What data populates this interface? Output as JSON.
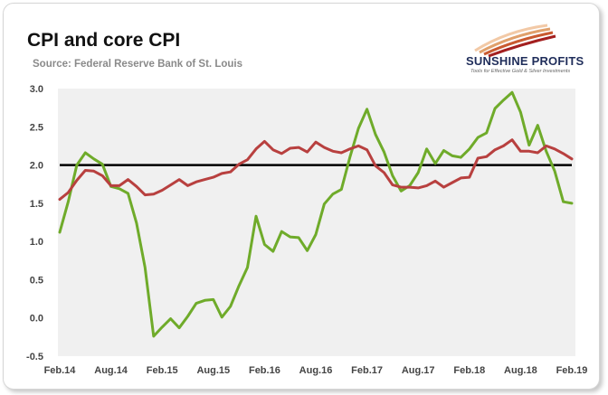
{
  "header": {
    "title": "CPI and core CPI",
    "subtitle": "Source: Federal Reserve Bank of St. Louis"
  },
  "logo": {
    "name": "SUNSHINE PROFITS",
    "tagline": "Tools for Effective Gold & Silver Investments"
  },
  "colors": {
    "cpi": "#6fab2a",
    "core_cpi": "#b8403f",
    "reference_line": "#000000",
    "plot_background": "#f0f0f0"
  },
  "chart_data": {
    "type": "line",
    "title": "CPI and core CPI",
    "subtitle": "Source: Federal Reserve Bank of St. Louis",
    "xlabel": "",
    "ylabel": "",
    "ylim": [
      -0.5,
      3.0
    ],
    "yticks": [
      3.0,
      2.5,
      2.0,
      1.5,
      1.0,
      0.5,
      0.0,
      -0.5
    ],
    "ytick_labels": [
      "3.0",
      "2.5",
      "2.0",
      "1.5",
      "1.0",
      "0.5",
      "0.0",
      "-0.5"
    ],
    "x": [
      "2014-02",
      "2014-03",
      "2014-04",
      "2014-05",
      "2014-06",
      "2014-07",
      "2014-08",
      "2014-09",
      "2014-10",
      "2014-11",
      "2014-12",
      "2015-01",
      "2015-02",
      "2015-03",
      "2015-04",
      "2015-05",
      "2015-06",
      "2015-07",
      "2015-08",
      "2015-09",
      "2015-10",
      "2015-11",
      "2015-12",
      "2016-01",
      "2016-02",
      "2016-03",
      "2016-04",
      "2016-05",
      "2016-06",
      "2016-07",
      "2016-08",
      "2016-09",
      "2016-10",
      "2016-11",
      "2016-12",
      "2017-01",
      "2017-02",
      "2017-03",
      "2017-04",
      "2017-05",
      "2017-06",
      "2017-07",
      "2017-08",
      "2017-09",
      "2017-10",
      "2017-11",
      "2017-12",
      "2018-01",
      "2018-02",
      "2018-03",
      "2018-04",
      "2018-05",
      "2018-06",
      "2018-07",
      "2018-08",
      "2018-09",
      "2018-10",
      "2018-11",
      "2018-12",
      "2019-01",
      "2019-02"
    ],
    "xtick_labels": [
      "Feb.14",
      "Aug.14",
      "Feb.15",
      "Aug.15",
      "Feb.16",
      "Aug.16",
      "Feb.17",
      "Aug.17",
      "Feb.18",
      "Aug.18",
      "Feb.19"
    ],
    "xtick_index": [
      0,
      6,
      12,
      18,
      24,
      30,
      36,
      42,
      48,
      54,
      60
    ],
    "grid": false,
    "reference_line": 2.0,
    "series": [
      {
        "key": "cpi",
        "values": [
          1.12,
          1.52,
          2.0,
          2.16,
          2.08,
          2.01,
          1.72,
          1.69,
          1.63,
          1.24,
          0.66,
          -0.24,
          -0.12,
          -0.01,
          -0.13,
          0.02,
          0.19,
          0.23,
          0.24,
          0.01,
          0.15,
          0.42,
          0.66,
          1.33,
          0.96,
          0.87,
          1.13,
          1.06,
          1.05,
          0.88,
          1.09,
          1.49,
          1.62,
          1.68,
          2.1,
          2.48,
          2.73,
          2.4,
          2.17,
          1.86,
          1.66,
          1.73,
          1.9,
          2.21,
          2.02,
          2.19,
          2.12,
          2.1,
          2.21,
          2.36,
          2.42,
          2.74,
          2.85,
          2.95,
          2.69,
          2.26,
          2.52,
          2.18,
          1.92,
          1.52,
          1.5
        ]
      },
      {
        "key": "core_cpi",
        "values": [
          1.55,
          1.64,
          1.8,
          1.93,
          1.92,
          1.86,
          1.73,
          1.73,
          1.81,
          1.72,
          1.61,
          1.62,
          1.67,
          1.74,
          1.81,
          1.73,
          1.78,
          1.81,
          1.84,
          1.89,
          1.91,
          2.01,
          2.07,
          2.21,
          2.31,
          2.2,
          2.15,
          2.22,
          2.23,
          2.17,
          2.3,
          2.23,
          2.18,
          2.16,
          2.21,
          2.25,
          2.2,
          1.99,
          1.9,
          1.74,
          1.71,
          1.71,
          1.7,
          1.73,
          1.79,
          1.71,
          1.77,
          1.83,
          1.84,
          2.09,
          2.11,
          2.2,
          2.25,
          2.33,
          2.18,
          2.18,
          2.16,
          2.25,
          2.21,
          2.15,
          2.08
        ]
      }
    ]
  }
}
